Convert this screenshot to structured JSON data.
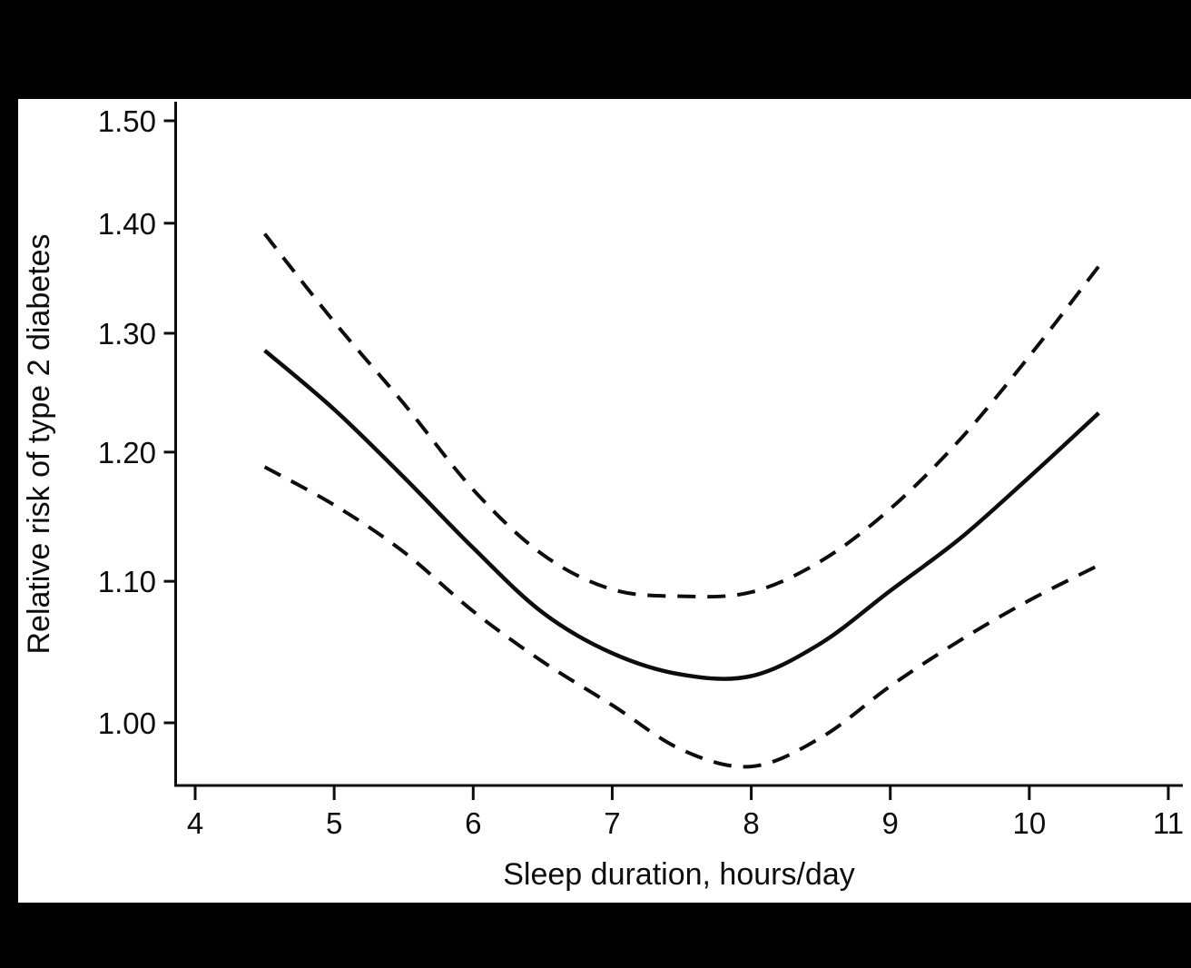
{
  "chart_data": {
    "type": "line",
    "title": "",
    "xlabel": "Sleep duration, hours/day",
    "ylabel": "Relative risk of type 2 diabetes",
    "x_ticks": [
      4,
      5,
      6,
      7,
      8,
      9,
      10,
      11
    ],
    "x_tick_labels": [
      "4",
      "5",
      "6",
      "7",
      "8",
      "9",
      "10",
      "11"
    ],
    "y_ticks": [
      1.0,
      1.1,
      1.2,
      1.3,
      1.4,
      1.5
    ],
    "y_tick_labels": [
      "1.00",
      "1.10",
      "1.20",
      "1.30",
      "1.40",
      "1.50"
    ],
    "y_scale": "log",
    "x_range_data": [
      4.5,
      10.5
    ],
    "x": [
      4.5,
      5.0,
      5.5,
      6.0,
      6.5,
      7.0,
      7.5,
      8.0,
      8.5,
      9.0,
      9.5,
      10.0,
      10.5
    ],
    "series": [
      {
        "name": "upper-95ci",
        "style": "dashed",
        "values": [
          1.39,
          1.31,
          1.24,
          1.17,
          1.12,
          1.094,
          1.089,
          1.092,
          1.115,
          1.155,
          1.21,
          1.28,
          1.36
        ]
      },
      {
        "name": "estimate",
        "style": "solid",
        "values": [
          1.285,
          1.235,
          1.18,
          1.125,
          1.077,
          1.048,
          1.033,
          1.032,
          1.055,
          1.093,
          1.132,
          1.18,
          1.232
        ]
      },
      {
        "name": "lower-95ci",
        "style": "dashed",
        "values": [
          1.188,
          1.158,
          1.122,
          1.078,
          1.042,
          1.012,
          0.982,
          0.971,
          0.99,
          1.025,
          1.057,
          1.086,
          1.112
        ]
      }
    ],
    "legend": "none",
    "grid": "off"
  },
  "colors": {
    "frame_background": "#000000",
    "plot_background": "#ffffff",
    "line": "#0d0d0d",
    "text": "#0d0d0d"
  }
}
